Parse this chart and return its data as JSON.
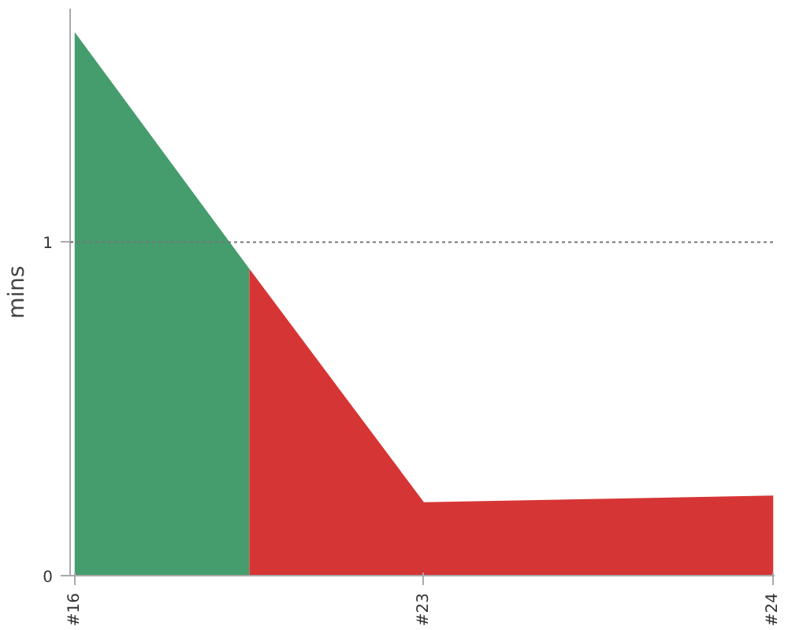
{
  "chart_data": {
    "type": "area",
    "ylabel": "mins",
    "categories": [
      "#16",
      null,
      "#23",
      null,
      "#24"
    ],
    "series": [
      {
        "color": "#459c6c",
        "values": [
          1.63,
          0.92,
          null,
          null,
          null
        ]
      },
      {
        "color": "#d63535",
        "values": [
          null,
          0.92,
          0.22,
          0.23,
          0.24
        ]
      }
    ],
    "ylim": [
      0,
      1.7
    ],
    "yticks": [
      0,
      1
    ],
    "ref_lines": [
      {
        "axis": "y",
        "value": 1,
        "label": null,
        "color": "#777777",
        "line_style": "dashed"
      }
    ]
  }
}
